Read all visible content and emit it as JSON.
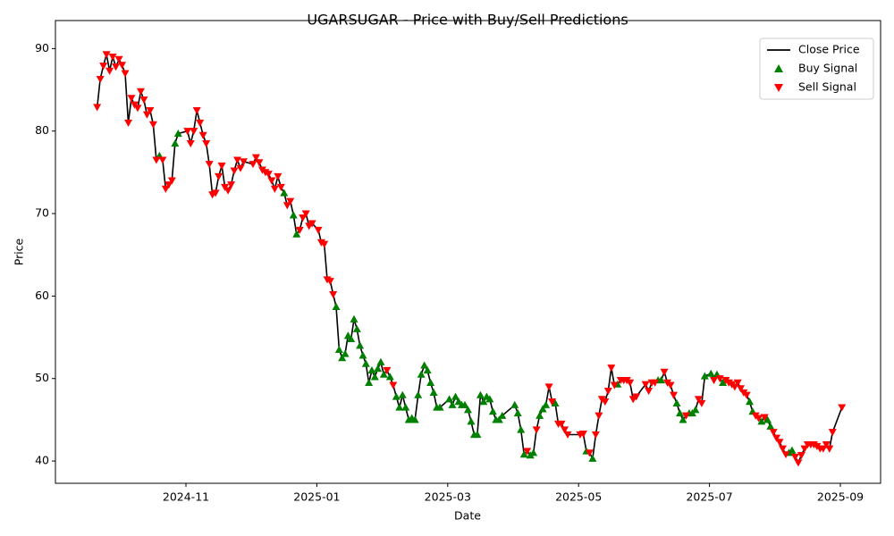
{
  "chart_data": {
    "type": "line",
    "title": "UGARSUGAR - Price with Buy/Sell Predictions",
    "xlabel": "Date",
    "ylabel": "Price",
    "x": [
      "2024-09",
      "2024-09",
      "2024-09",
      "2024-09",
      "2024-09",
      "2024-09",
      "2024-09",
      "2024-09",
      "2024-10",
      "2024-10",
      "2024-10",
      "2024-10",
      "2024-10",
      "2024-10",
      "2024-10",
      "2024-10",
      "2024-10",
      "2024-10",
      "2024-10",
      "2024-10",
      "2024-10",
      "2024-10",
      "2024-10",
      "2024-10",
      "2024-10",
      "2024-10",
      "2024-10",
      "2024-11",
      "2024-11",
      "2024-11",
      "2024-11",
      "2024-11",
      "2024-11",
      "2024-11",
      "2024-11",
      "2024-11",
      "2024-11",
      "2024-11",
      "2024-11",
      "2024-11",
      "2024-11",
      "2024-11",
      "2024-11",
      "2024-11",
      "2024-11",
      "2024-11",
      "2024-12",
      "2024-12",
      "2024-12",
      "2024-12",
      "2024-12",
      "2024-12",
      "2024-12",
      "2024-12",
      "2024-12",
      "2024-12",
      "2024-12",
      "2024-12",
      "2024-12",
      "2024-12",
      "2024-12",
      "2024-12",
      "2024-12",
      "2024-12",
      "2024-12",
      "2024-12",
      "2025-01",
      "2025-01",
      "2025-01",
      "2025-01",
      "2025-01",
      "2025-01",
      "2025-01",
      "2025-01",
      "2025-01",
      "2025-01",
      "2025-01",
      "2025-01",
      "2025-01",
      "2025-01",
      "2025-01",
      "2025-01",
      "2025-01",
      "2025-01",
      "2025-01",
      "2025-01",
      "2025-01",
      "2025-01",
      "2025-02",
      "2025-02",
      "2025-02",
      "2025-02",
      "2025-02",
      "2025-02",
      "2025-02",
      "2025-02",
      "2025-02",
      "2025-02",
      "2025-02",
      "2025-02",
      "2025-02",
      "2025-02",
      "2025-02",
      "2025-02",
      "2025-02",
      "2025-02",
      "2025-02",
      "2025-03",
      "2025-03",
      "2025-03",
      "2025-03",
      "2025-03",
      "2025-03",
      "2025-03",
      "2025-03",
      "2025-03",
      "2025-03",
      "2025-03",
      "2025-03",
      "2025-03",
      "2025-03",
      "2025-03",
      "2025-03",
      "2025-03",
      "2025-03",
      "2025-04",
      "2025-04",
      "2025-04",
      "2025-04",
      "2025-04",
      "2025-04",
      "2025-04",
      "2025-04",
      "2025-04",
      "2025-04",
      "2025-04",
      "2025-04",
      "2025-04",
      "2025-04",
      "2025-04",
      "2025-04",
      "2025-04",
      "2025-04",
      "2025-05",
      "2025-05",
      "2025-05",
      "2025-05",
      "2025-05",
      "2025-05",
      "2025-05",
      "2025-05",
      "2025-05",
      "2025-05",
      "2025-05",
      "2025-05",
      "2025-05",
      "2025-05",
      "2025-05",
      "2025-05",
      "2025-05",
      "2025-05",
      "2025-05",
      "2025-06",
      "2025-06",
      "2025-06",
      "2025-06",
      "2025-06",
      "2025-06",
      "2025-06",
      "2025-06",
      "2025-06",
      "2025-06",
      "2025-06",
      "2025-06",
      "2025-06",
      "2025-06",
      "2025-06",
      "2025-06",
      "2025-06",
      "2025-06",
      "2025-06",
      "2025-06",
      "2025-07",
      "2025-07",
      "2025-07",
      "2025-07",
      "2025-07",
      "2025-07",
      "2025-07",
      "2025-07",
      "2025-07",
      "2025-07",
      "2025-07",
      "2025-07",
      "2025-07",
      "2025-07",
      "2025-07",
      "2025-07",
      "2025-07",
      "2025-07",
      "2025-07",
      "2025-07",
      "2025-07",
      "2025-07",
      "2025-08",
      "2025-08",
      "2025-08",
      "2025-08",
      "2025-08",
      "2025-08",
      "2025-08",
      "2025-08",
      "2025-08",
      "2025-08",
      "2025-08",
      "2025-08",
      "2025-08",
      "2025-08",
      "2025-08",
      "2025-08",
      "2025-08",
      "2025-08",
      "2025-08",
      "2025-09"
    ],
    "series": [
      {
        "name": "Close Price",
        "color": "#000000",
        "kind": "line",
        "values": [
          82.9,
          86.3,
          87.9,
          89.3,
          87.3,
          89.0,
          87.8,
          88.7,
          88.0,
          87.0,
          81.0,
          84.0,
          83.2,
          82.8,
          84.8,
          83.8,
          82.0,
          82.5,
          80.8,
          76.5,
          77.0,
          76.5,
          73.0,
          73.5,
          74.0,
          78.5,
          79.7,
          80.0,
          78.5,
          80.0,
          82.5,
          81.0,
          79.5,
          78.5,
          76.0,
          72.3,
          72.5,
          74.5,
          75.8,
          73.2,
          72.8,
          73.5,
          75.2,
          76.5,
          75.5,
          76.3,
          76.0,
          76.8,
          76.2,
          75.3,
          75.0,
          74.8,
          74.0,
          73.0,
          74.5,
          73.2,
          72.5,
          71.0,
          71.5,
          69.8,
          67.5,
          68.0,
          69.5,
          70.0,
          68.5,
          68.8,
          68.0,
          66.5,
          66.3,
          62.0,
          61.8,
          60.2,
          58.7,
          53.5,
          52.5,
          53.0,
          55.2,
          54.8,
          57.2,
          56.0,
          54.0,
          52.8,
          51.8,
          49.5,
          51.0,
          50.2,
          51.2,
          52.0,
          50.5,
          51.0,
          50.2,
          49.2,
          47.8,
          46.5,
          48.0,
          46.5,
          45.0,
          45.2,
          45.0,
          48.0,
          50.5,
          51.6,
          51.0,
          49.5,
          48.3,
          46.5,
          46.5,
          47.5,
          46.8,
          47.8,
          47.2,
          46.8,
          46.8,
          46.2,
          44.8,
          43.2,
          43.2,
          48.0,
          47.2,
          47.8,
          47.5,
          46.0,
          45.0,
          45.0,
          45.5,
          46.8,
          45.8,
          43.8,
          40.8,
          41.2,
          40.7,
          41.0,
          43.8,
          45.5,
          46.3,
          46.8,
          49.0,
          47.2,
          47.0,
          44.5,
          44.5,
          43.8,
          43.2,
          43.2,
          43.3,
          41.2,
          41.0,
          40.3,
          43.2,
          45.5,
          47.5,
          47.2,
          48.5,
          51.3,
          49.2,
          49.3,
          49.8,
          49.8,
          49.8,
          49.5,
          47.5,
          47.8,
          49.3,
          48.5,
          49.5,
          49.5,
          49.8,
          49.8,
          50.8,
          49.5,
          49.2,
          48.0,
          47.0,
          45.8,
          45.0,
          45.5,
          45.8,
          45.8,
          46.2,
          47.5,
          47.0,
          50.3,
          50.6,
          49.8,
          50.5,
          50.0,
          49.5,
          49.8,
          49.5,
          49.3,
          49.0,
          49.5,
          48.8,
          48.3,
          48.0,
          47.2,
          46.0,
          45.5,
          45.2,
          44.8,
          45.3,
          45.0,
          44.2,
          43.5,
          42.8,
          42.3,
          41.5,
          40.8,
          41.0,
          41.3,
          40.5,
          39.8,
          40.7,
          41.5,
          42.0,
          42.0,
          42.0,
          41.8,
          41.5,
          41.5,
          42.0,
          41.5,
          43.5,
          46.5
        ]
      },
      {
        "name": "Buy Signal",
        "color": "#008000",
        "kind": "up",
        "values": [
          null,
          null,
          null,
          null,
          null,
          null,
          null,
          null,
          null,
          null,
          null,
          null,
          null,
          null,
          null,
          null,
          null,
          null,
          null,
          null,
          77.0,
          null,
          null,
          null,
          null,
          78.5,
          79.7,
          null,
          null,
          null,
          null,
          null,
          null,
          null,
          null,
          null,
          null,
          null,
          null,
          null,
          null,
          null,
          null,
          null,
          null,
          null,
          null,
          null,
          null,
          null,
          null,
          null,
          null,
          null,
          null,
          null,
          72.5,
          null,
          null,
          69.8,
          67.5,
          null,
          null,
          null,
          null,
          null,
          null,
          null,
          null,
          null,
          null,
          null,
          58.7,
          53.5,
          52.5,
          53.0,
          55.2,
          54.8,
          57.2,
          56.0,
          54.0,
          52.8,
          51.8,
          49.5,
          51.0,
          50.2,
          51.2,
          52.0,
          50.5,
          null,
          50.2,
          null,
          47.8,
          46.5,
          48.0,
          46.5,
          45.0,
          45.2,
          45.0,
          48.0,
          50.5,
          51.6,
          51.0,
          49.5,
          48.3,
          46.5,
          46.5,
          47.5,
          46.8,
          47.8,
          47.2,
          46.8,
          46.8,
          46.2,
          44.8,
          43.2,
          43.2,
          48.0,
          47.2,
          47.8,
          47.5,
          46.0,
          45.0,
          45.0,
          45.5,
          46.8,
          45.8,
          43.8,
          40.8,
          null,
          40.7,
          41.0,
          null,
          45.5,
          46.3,
          46.8,
          null,
          null,
          47.0,
          null,
          null,
          null,
          null,
          null,
          null,
          41.2,
          null,
          40.3,
          null,
          null,
          null,
          null,
          null,
          null,
          null,
          49.3,
          null,
          null,
          null,
          null,
          null,
          null,
          null,
          null,
          null,
          null,
          49.8,
          49.8,
          null,
          null,
          null,
          null,
          47.0,
          45.8,
          45.0,
          null,
          45.8,
          45.8,
          46.2,
          null,
          null,
          50.3,
          50.6,
          null,
          50.5,
          null,
          49.5,
          null,
          null,
          null,
          null,
          null,
          null,
          null,
          null,
          47.2,
          46.0,
          null,
          null,
          44.8,
          null,
          45.0,
          44.2,
          null,
          null,
          null,
          null,
          null,
          41.0,
          41.3,
          null,
          null,
          null,
          null,
          null,
          null,
          null,
          null,
          null,
          null,
          null,
          null,
          null,
          null
        ]
      },
      {
        "name": "Sell Signal",
        "color": "#ff0000",
        "kind": "down",
        "values": [
          82.9,
          86.3,
          87.9,
          89.3,
          87.3,
          89.0,
          87.8,
          88.7,
          88.0,
          87.0,
          81.0,
          84.0,
          83.2,
          82.8,
          84.8,
          83.8,
          82.0,
          82.5,
          80.8,
          76.5,
          null,
          76.5,
          73.0,
          73.5,
          74.0,
          null,
          null,
          80.0,
          78.5,
          80.0,
          82.5,
          81.0,
          79.5,
          78.5,
          76.0,
          72.3,
          72.5,
          74.5,
          75.8,
          73.2,
          72.8,
          73.5,
          75.2,
          76.5,
          75.5,
          76.3,
          76.0,
          76.8,
          76.2,
          75.3,
          75.0,
          74.8,
          74.0,
          73.0,
          74.5,
          73.2,
          null,
          71.0,
          71.5,
          null,
          null,
          68.0,
          69.5,
          70.0,
          68.5,
          68.8,
          68.0,
          66.5,
          66.3,
          62.0,
          61.8,
          60.2,
          null,
          null,
          null,
          null,
          null,
          null,
          null,
          null,
          null,
          null,
          null,
          null,
          null,
          null,
          null,
          null,
          null,
          51.0,
          null,
          49.2,
          null,
          null,
          null,
          null,
          null,
          null,
          null,
          null,
          null,
          null,
          null,
          null,
          null,
          null,
          null,
          null,
          null,
          null,
          null,
          null,
          null,
          null,
          null,
          null,
          null,
          null,
          null,
          null,
          null,
          null,
          null,
          null,
          null,
          null,
          null,
          null,
          null,
          41.2,
          null,
          null,
          43.8,
          null,
          null,
          null,
          49.0,
          47.2,
          null,
          44.5,
          44.5,
          43.8,
          43.2,
          43.2,
          43.3,
          null,
          41.0,
          null,
          43.2,
          45.5,
          47.5,
          47.2,
          48.5,
          51.3,
          49.2,
          null,
          49.8,
          49.8,
          49.8,
          49.5,
          47.5,
          47.8,
          49.3,
          48.5,
          49.5,
          49.5,
          null,
          null,
          50.8,
          49.5,
          49.2,
          48.0,
          null,
          null,
          null,
          45.5,
          null,
          null,
          null,
          47.5,
          47.0,
          null,
          null,
          49.8,
          null,
          50.0,
          null,
          49.8,
          49.5,
          49.3,
          49.0,
          49.5,
          48.8,
          48.3,
          48.0,
          null,
          null,
          45.5,
          45.2,
          null,
          45.3,
          null,
          null,
          43.5,
          42.8,
          42.3,
          41.5,
          40.8,
          null,
          null,
          40.5,
          39.8,
          40.7,
          41.5,
          42.0,
          42.0,
          42.0,
          41.8,
          41.5,
          41.5,
          42.0,
          41.5,
          43.5,
          46.5
        ]
      }
    ],
    "xticks": [
      "2024-11",
      "2025-01",
      "2025-03",
      "2025-05",
      "2025-07",
      "2025-09"
    ],
    "ylim": [
      37.3,
      93.4
    ],
    "yticks": [
      40,
      50,
      60,
      70,
      80,
      90
    ],
    "grid": false,
    "legend": "upper right"
  }
}
